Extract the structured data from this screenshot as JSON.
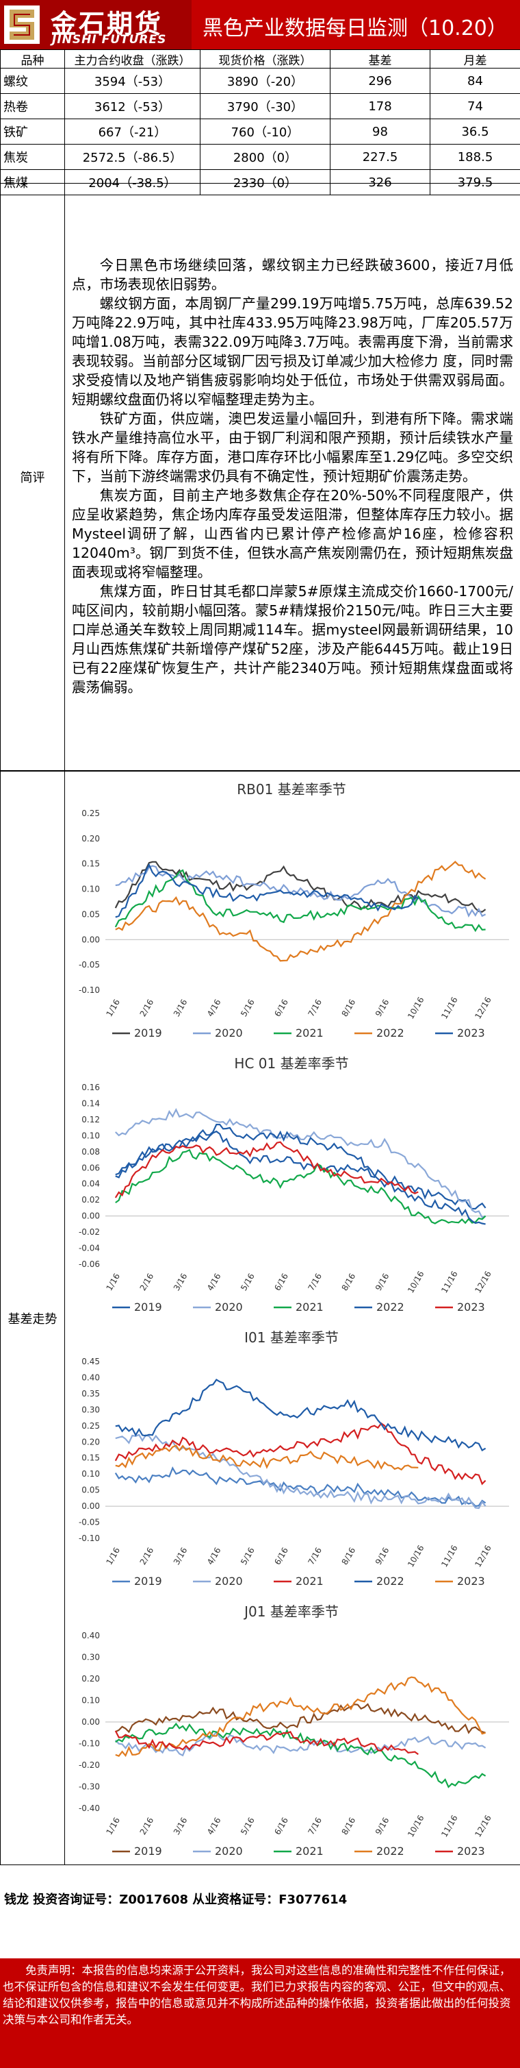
{
  "header": {
    "logo_cn": "金石期货",
    "logo_en": "JINSHI FUTURES",
    "title": "黑色产业数据每日监测（10.20）"
  },
  "quote_table": {
    "headers": [
      "品种",
      "主力合约收盘（涨跌）",
      "现货价格（涨跌）",
      "基差",
      "月差"
    ],
    "rows": [
      [
        "螺纹",
        "3594（-53）",
        "3890（-20）",
        "296",
        "84"
      ],
      [
        "热卷",
        "3612（-53）",
        "3790（-30）",
        "178",
        "74"
      ],
      [
        "铁矿",
        "667（-21）",
        "760（-10）",
        "98",
        "36.5"
      ],
      [
        "焦炭",
        "2572.5（-86.5）",
        "2800（0）",
        "227.5",
        "188.5"
      ],
      [
        "焦煤",
        "2004（-38.5）",
        "2330（0）",
        "326",
        "379.5"
      ]
    ]
  },
  "summary": {
    "label": "简评",
    "paragraphs": [
      "今日黑色市场继续回落，螺纹钢主力已经跌破3600，接近7月低点，市场表现依旧弱势。",
      "螺纹钢方面，本周钢厂产量299.19万吨增5.75万吨，总库639.52万吨降22.9万吨，其中社库433.95万吨降23.98万吨，厂库205.57万吨增1.08万吨，表需322.09万吨降3.7万吨。表需再度下滑，当前需求表现较弱。当前部分区域钢厂因亏损及订单减少加大检修力 度，同时需求受疫情以及地产销售疲弱影响均处于低位，市场处于供需双弱局面。短期螺纹盘面仍将以窄幅整理走势为主。",
      "铁矿方面，供应端，澳巴发运量小幅回升，到港有所下降。需求端铁水产量维持高位水平，由于钢厂利润和限产预期，预计后续铁水产量将有所下降。库存方面，港口库存环比小幅累库至1.29亿吨。多空交织下，当前下游终端需求仍具有不确定性，预计短期矿价震荡走势。",
      "焦炭方面，目前主产地多数焦企存在20%-50%不同程度限产，供应呈收紧趋势，焦企场内库存虽受发运阻滞，但整体库存压力较小。据Mysteel调研了解，山西省内已累计停产检修高炉16座，检修容积12040m³。钢厂到货不佳，但铁水高产焦炭刚需仍在，预计短期焦炭盘面表现或将窄幅整理。",
      "焦煤方面，昨日甘其毛都口岸蒙5#原煤主流成交价1660-1700元/吨区间内，较前期小幅回落。蒙5#精煤报价2150元/吨。昨日三大主要口岸总通关车数较上周同期减114车。据mysteel网最新调研结果，10月山西炼焦煤矿共新增停产煤矿52座，涉及产能6445万吨。截止19日已有22座煤矿恢复生产，共计产能2340万吨。预计短期焦煤盘面或将震荡偏弱。"
    ]
  },
  "basis_label": "基差走势",
  "legend_years": [
    "2019",
    "2020",
    "2021",
    "2022",
    "2023"
  ],
  "colors": {
    "brand_red": "#c40000",
    "rb_series": [
      "#404040",
      "#7f9fd6",
      "#11a84a",
      "#e07b1f",
      "#1f5ca8"
    ],
    "hc_series": [
      "#1f5ca8",
      "#8aa8d8",
      "#11a84a",
      "#1f5ca8",
      "#d42020"
    ],
    "io_series": [
      "#4a7fc2",
      "#8aa8d8",
      "#d42020",
      "#1f5ca8",
      "#e07b1f"
    ],
    "jm_series": [
      "#8a4a1f",
      "#8aa8d8",
      "#11a84a",
      "#e07b1f",
      "#d42020"
    ]
  },
  "chart_data": [
    {
      "type": "line",
      "title": "RB01 基差率季节",
      "x": [
        "1/16",
        "2/16",
        "3/16",
        "4/16",
        "5/16",
        "6/16",
        "7/16",
        "8/16",
        "9/16",
        "10/16",
        "11/16",
        "12/16"
      ],
      "ylim": [
        -0.1,
        0.25
      ],
      "yticks": [
        "0.25",
        "0.20",
        "0.15",
        "0.10",
        "0.05",
        "0.00",
        "-0.05",
        "-0.10"
      ],
      "series": [
        {
          "name": "2019",
          "values": [
            0.06,
            0.15,
            0.13,
            0.11,
            0.1,
            0.14,
            0.1,
            0.07,
            0.07,
            0.09,
            0.08,
            0.06
          ]
        },
        {
          "name": "2020",
          "values": [
            0.1,
            0.14,
            0.12,
            0.13,
            0.11,
            0.1,
            0.09,
            0.08,
            0.12,
            0.08,
            0.06,
            0.05
          ]
        },
        {
          "name": "2021",
          "values": [
            0.03,
            0.09,
            0.13,
            0.05,
            0.06,
            0.04,
            0.05,
            0.06,
            0.06,
            0.08,
            0.03,
            0.02
          ]
        },
        {
          "name": "2022",
          "values": [
            0.02,
            0.06,
            0.08,
            0.02,
            0.01,
            -0.04,
            -0.02,
            0.0,
            0.05,
            0.11,
            0.15,
            0.12
          ]
        },
        {
          "name": "2023",
          "values": [
            0.04,
            0.14,
            0.11,
            0.09,
            0.08,
            0.09,
            0.09,
            0.08,
            0.06,
            0.08,
            null,
            null
          ]
        }
      ]
    },
    {
      "type": "line",
      "title": "HC 01 基差率季节",
      "x": [
        "1/16",
        "2/16",
        "3/16",
        "4/16",
        "5/16",
        "6/16",
        "7/16",
        "8/16",
        "9/16",
        "10/16",
        "11/16",
        "12/16"
      ],
      "ylim": [
        -0.06,
        0.16
      ],
      "yticks": [
        "0.16",
        "0.14",
        "0.12",
        "0.10",
        "0.08",
        "0.06",
        "0.04",
        "0.02",
        "0.00",
        "-0.02",
        "-0.04",
        "-0.06"
      ],
      "series": [
        {
          "name": "2019",
          "values": [
            0.05,
            0.08,
            0.09,
            0.1,
            0.07,
            0.07,
            0.06,
            0.06,
            0.05,
            0.03,
            0.02,
            0.01
          ]
        },
        {
          "name": "2020",
          "values": [
            0.1,
            0.12,
            0.13,
            0.12,
            0.11,
            0.1,
            0.1,
            0.09,
            0.09,
            0.06,
            0.03,
            0.0
          ]
        },
        {
          "name": "2021",
          "values": [
            0.02,
            0.05,
            0.08,
            0.07,
            0.05,
            0.04,
            0.06,
            0.04,
            0.03,
            0.0,
            -0.01,
            0.0
          ]
        },
        {
          "name": "2022",
          "values": [
            0.05,
            0.08,
            0.09,
            0.11,
            0.1,
            0.1,
            0.09,
            0.08,
            0.04,
            0.02,
            0.01,
            -0.01
          ]
        },
        {
          "name": "2023",
          "values": [
            0.02,
            0.07,
            0.09,
            0.08,
            0.08,
            0.09,
            0.06,
            0.05,
            0.04,
            0.03,
            null,
            null
          ]
        }
      ]
    },
    {
      "type": "line",
      "title": "I01 基差率季节",
      "x": [
        "1/16",
        "2/16",
        "3/16",
        "4/16",
        "5/16",
        "6/16",
        "7/16",
        "8/16",
        "9/16",
        "10/16",
        "11/16",
        "12/16"
      ],
      "ylim": [
        -0.1,
        0.45
      ],
      "yticks": [
        "0.45",
        "0.40",
        "0.35",
        "0.30",
        "0.25",
        "0.20",
        "0.15",
        "0.10",
        "0.05",
        "0.00",
        "-0.05",
        "-0.10"
      ],
      "series": [
        {
          "name": "2019",
          "values": [
            0.1,
            0.08,
            0.12,
            0.08,
            0.07,
            0.06,
            0.05,
            0.06,
            0.04,
            0.03,
            0.02,
            0.01
          ]
        },
        {
          "name": "2020",
          "values": [
            0.2,
            0.22,
            0.18,
            0.15,
            0.1,
            0.05,
            0.04,
            0.03,
            0.02,
            0.02,
            0.03,
            0.0
          ]
        },
        {
          "name": "2021",
          "values": [
            0.15,
            0.18,
            0.2,
            0.17,
            0.16,
            0.18,
            0.2,
            0.22,
            0.25,
            0.15,
            0.1,
            0.08
          ]
        },
        {
          "name": "2022",
          "values": [
            0.25,
            0.22,
            0.3,
            0.38,
            0.35,
            0.28,
            0.3,
            0.32,
            0.25,
            0.22,
            0.2,
            0.18
          ]
        },
        {
          "name": "2023",
          "values": [
            0.12,
            0.16,
            0.18,
            0.15,
            0.13,
            0.14,
            0.16,
            0.14,
            0.13,
            0.12,
            null,
            null
          ]
        }
      ]
    },
    {
      "type": "line",
      "title": "J01 基差率季节",
      "x": [
        "1/16",
        "2/16",
        "3/16",
        "4/16",
        "5/16",
        "6/16",
        "7/16",
        "8/16",
        "9/16",
        "10/16",
        "11/16",
        "12/16"
      ],
      "ylim": [
        -0.4,
        0.4
      ],
      "yticks": [
        "0.40",
        "0.30",
        "0.20",
        "0.10",
        "0.00",
        "-0.10",
        "-0.20",
        "-0.30",
        "-0.40"
      ],
      "series": [
        {
          "name": "2019",
          "values": [
            -0.05,
            0.0,
            0.02,
            0.05,
            0.0,
            -0.02,
            0.02,
            0.08,
            0.05,
            0.02,
            -0.02,
            -0.05
          ]
        },
        {
          "name": "2020",
          "values": [
            -0.1,
            -0.12,
            -0.14,
            -0.05,
            -0.12,
            -0.13,
            -0.1,
            -0.14,
            -0.12,
            -0.08,
            -0.1,
            -0.12
          ]
        },
        {
          "name": "2021",
          "values": [
            -0.08,
            -0.05,
            -0.02,
            -0.06,
            -0.04,
            -0.05,
            -0.1,
            -0.12,
            -0.15,
            -0.2,
            -0.3,
            -0.25
          ]
        },
        {
          "name": "2022",
          "values": [
            -0.15,
            -0.12,
            -0.1,
            -0.05,
            0.05,
            0.1,
            0.05,
            0.08,
            0.15,
            0.2,
            0.1,
            -0.05
          ]
        },
        {
          "name": "2023",
          "values": [
            -0.05,
            -0.1,
            -0.12,
            -0.1,
            -0.08,
            -0.05,
            -0.1,
            -0.08,
            -0.12,
            -0.15,
            null,
            null
          ]
        }
      ]
    }
  ],
  "footer": {
    "analyst": "钱龙 投资咨询证号：Z0017608 从业资格证号：F3077614",
    "disclaimer": "免责声明：本报告的信息均来源于公开资料，我公司对这些信息的准确性和完整性不作任何保证，也不保证所包含的信息和建议不会发生任何变更。我们已力求报告内容的客观、公正，但文中的观点、结论和建议仅供参考，报告中的信息或意见并不构成所述品种的操作依据，投资者据此做出的任何投资决策与本公司和作者无关。"
  }
}
